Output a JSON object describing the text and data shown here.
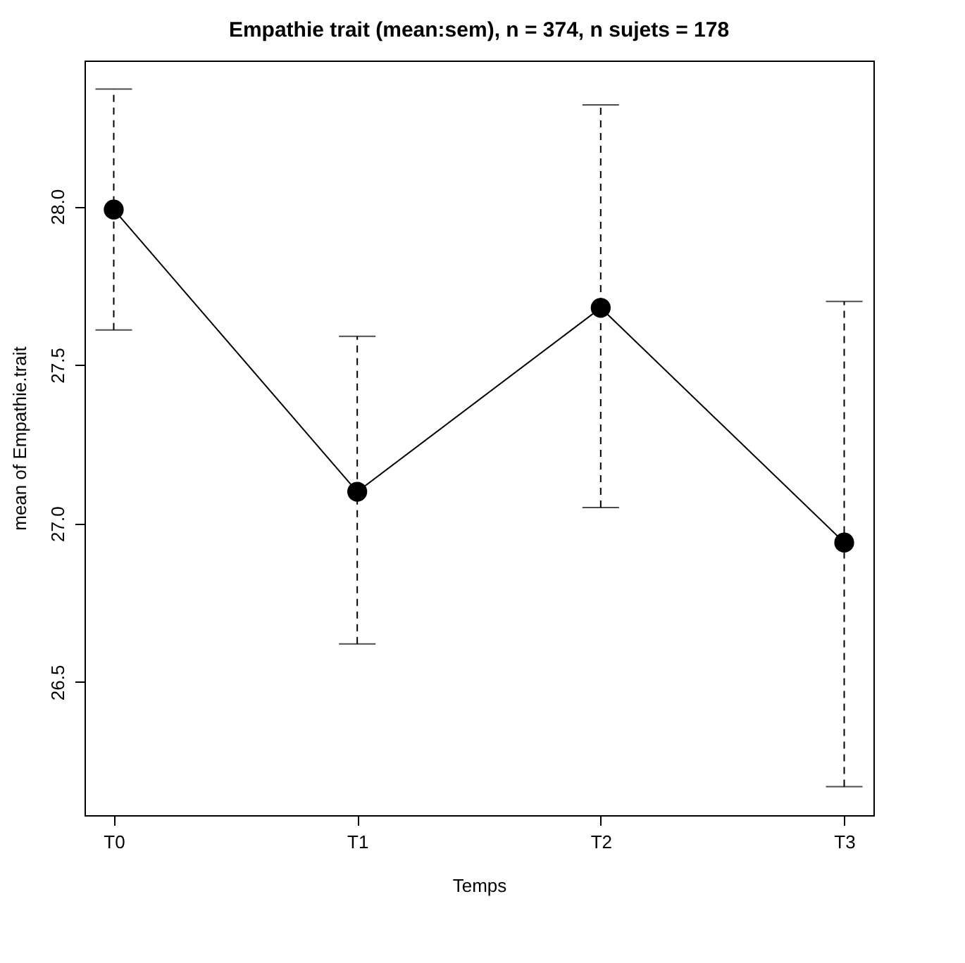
{
  "chart_data": {
    "type": "line",
    "title": "Empathie trait (mean:sem), n = 374, n sujets = 178",
    "xlabel": "Temps",
    "ylabel": "mean of Empathie.trait",
    "categories": [
      "T0",
      "T1",
      "T2",
      "T3"
    ],
    "series": [
      {
        "color": "#000000",
        "values": [
          27.99,
          27.1,
          27.68,
          26.94
        ],
        "errors": [
          [
            27.61,
            28.37
          ],
          [
            26.62,
            27.59
          ],
          [
            27.05,
            28.32
          ],
          [
            26.17,
            27.7
          ]
        ]
      }
    ],
    "ylim": [
      26.08,
      28.46
    ],
    "yticks": [
      26.5,
      {
        "value": 27,
        "label": "27.0"
      },
      27.5,
      {
        "value": 28,
        "label": "28.0"
      }
    ],
    "grid": false,
    "marker": "circle",
    "line_style": "solid"
  }
}
